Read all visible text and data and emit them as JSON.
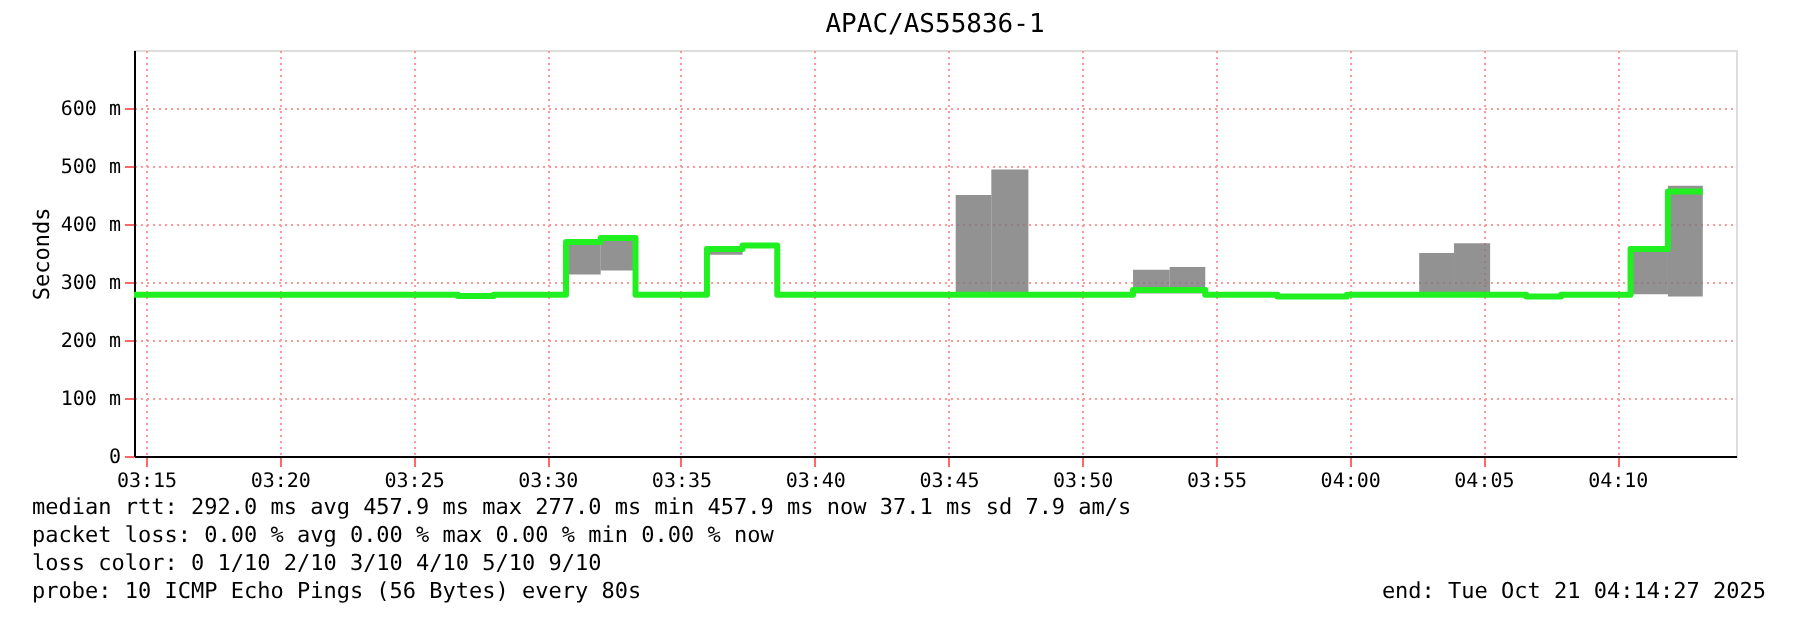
{
  "chart_data": {
    "type": "step",
    "title": "APAC/AS55836-1",
    "ylabel": "Seconds",
    "x": [
      3.2425,
      3.4443,
      3.4667,
      3.5117,
      3.5333,
      3.555,
      3.5995,
      3.6217,
      3.6433,
      3.7545,
      3.7767,
      3.7998,
      3.865,
      3.8878,
      3.91,
      3.955,
      3.9983,
      4.0433,
      4.065,
      4.0875,
      4.11,
      4.1317,
      4.175,
      4.1983,
      4.22
    ],
    "series": [
      {
        "color": "#20f020",
        "values": [
          278,
          276,
          278,
          369,
          376,
          278,
          357,
          363,
          278,
          278,
          278,
          278,
          286,
          286,
          278,
          275,
          278,
          278,
          278,
          278,
          275,
          278,
          357,
          456,
          456
        ],
        "lower": [
          null,
          null,
          null,
          313,
          320,
          null,
          347,
          null,
          null,
          278,
          278,
          null,
          280,
          280,
          null,
          null,
          null,
          278,
          278,
          null,
          null,
          null,
          279,
          275,
          275
        ],
        "upper": [
          null,
          null,
          null,
          372,
          378,
          null,
          360,
          null,
          null,
          450,
          494,
          null,
          321,
          326,
          null,
          null,
          null,
          350,
          367,
          null,
          null,
          null,
          360,
          466,
          466
        ]
      }
    ],
    "xlim": [
      3.2425,
      4.2407
    ],
    "ylim": [
      0,
      700
    ],
    "xticks": [
      {
        "value": 3.25,
        "label": "03:15"
      },
      {
        "value": 3.3333,
        "label": "03:20"
      },
      {
        "value": 3.4167,
        "label": "03:25"
      },
      {
        "value": 3.5,
        "label": "03:30"
      },
      {
        "value": 3.5833,
        "label": "03:35"
      },
      {
        "value": 3.6667,
        "label": "03:40"
      },
      {
        "value": 3.75,
        "label": "03:45"
      },
      {
        "value": 3.8333,
        "label": "03:50"
      },
      {
        "value": 3.9167,
        "label": "03:55"
      },
      {
        "value": 4.0,
        "label": "04:00"
      },
      {
        "value": 4.0833,
        "label": "04:05"
      },
      {
        "value": 4.1667,
        "label": "04:10"
      }
    ],
    "yticks": [
      0,
      {
        "value": 100,
        "label": "100 m"
      },
      {
        "value": 200,
        "label": "200 m"
      },
      {
        "value": 300,
        "label": "300 m"
      },
      {
        "value": 400,
        "label": "400 m"
      },
      {
        "value": 500,
        "label": "500 m"
      },
      {
        "value": 600,
        "label": "600 m"
      }
    ],
    "grid": true,
    "annotations": [
      "median rtt:  292.0 ms avg  457.9 ms max  277.0 ms min  457.9 ms now  37.1 ms sd  7.9   am/s",
      "packet loss: 0.00 % avg  0.00 % max  0.00 % min  0.00 % now",
      "loss color:  0  1/10  2/10  3/10  4/10  5/10  9/10",
      "probe:       10 ICMP Echo Pings (56 Bytes) every 80s",
      "end: Tue Oct 21 04:14:27 2025"
    ]
  }
}
